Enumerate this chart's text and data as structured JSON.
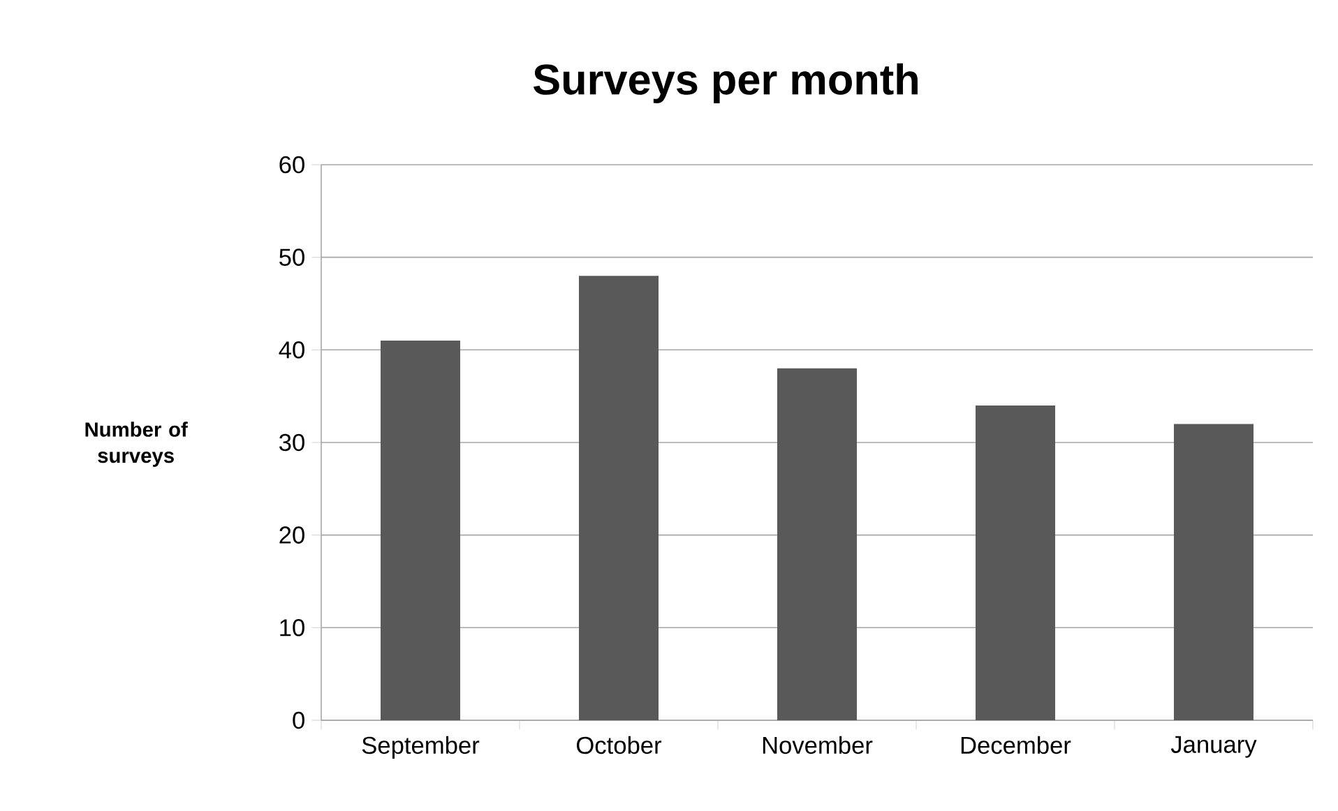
{
  "chart_data": {
    "type": "bar",
    "title": "Surveys per month",
    "ylabel": "Number of surveys",
    "categories": [
      "September",
      "October",
      "November",
      "December",
      "January"
    ],
    "values": [
      41,
      48,
      38,
      34,
      32
    ],
    "color": "#595959",
    "ylim": [
      0,
      60
    ],
    "yticks": [
      0,
      10,
      20,
      30,
      40,
      50,
      60
    ],
    "grid": "y"
  }
}
